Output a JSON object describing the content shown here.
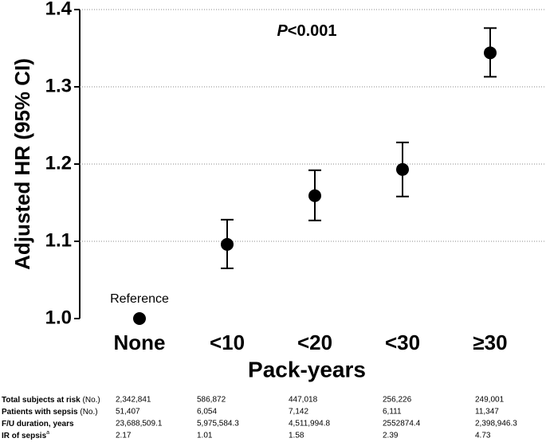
{
  "chart_data": {
    "type": "errorpoint",
    "y_label": "Adjusted HR (95% CI)",
    "x_label": "Pack-years",
    "annotation": {
      "italic": "P",
      "text": "<0.001"
    },
    "reference_label": "Reference",
    "categories": [
      "None",
      "<10",
      "<20",
      "<30",
      "≥30"
    ],
    "values": [
      1.0,
      1.096,
      1.159,
      1.193,
      1.344
    ],
    "lower": [
      null,
      1.065,
      1.127,
      1.158,
      1.313
    ],
    "upper": [
      null,
      1.128,
      1.192,
      1.228,
      1.376
    ],
    "color": "#000000",
    "ylim": [
      1.0,
      1.4
    ],
    "yticks": [
      {
        "value": 1,
        "label": "1.0"
      },
      1.1,
      1.2,
      1.3,
      1.4
    ],
    "grid": true
  },
  "table": {
    "rows": [
      {
        "label": "Total subjects at risk",
        "unit": "(No.)",
        "values": [
          "2,342,841",
          "586,872",
          "447,018",
          "256,226",
          "249,001"
        ]
      },
      {
        "label": "Patients with sepsis",
        "unit": "(No.)",
        "values": [
          "51,407",
          "6,054",
          "7,142",
          "6,111",
          "11,347"
        ]
      },
      {
        "label": "F/U duration, years",
        "values": [
          "23,688,509.1",
          "5,975,584.3",
          "4,511,994.8",
          "2552874.4",
          "2,398,946.3"
        ]
      },
      {
        "label": "IR of sepsis",
        "sup": "a",
        "values": [
          "2.17",
          "1.01",
          "1.58",
          "2.39",
          "4.73"
        ]
      }
    ]
  }
}
